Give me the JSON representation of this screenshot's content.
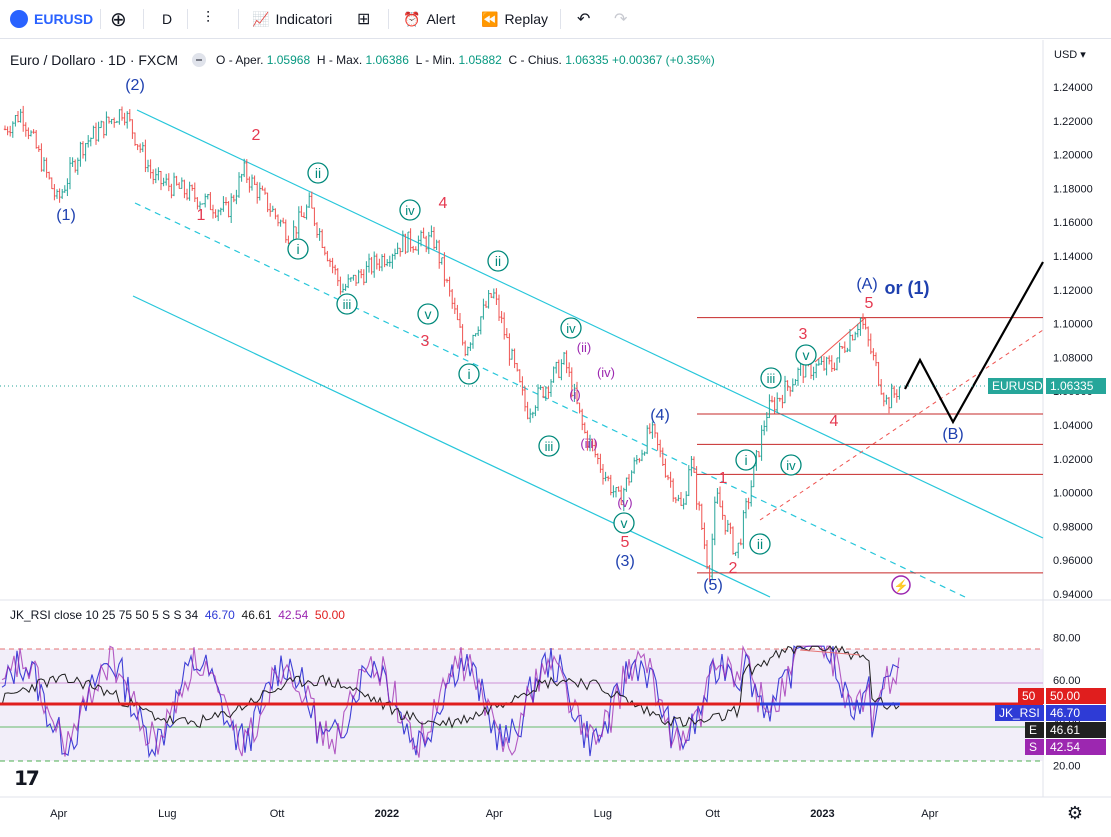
{
  "toolbar": {
    "symbol": "EURUSD",
    "interval": "D",
    "indicators_label": "Indicatori",
    "alert_label": "Alert",
    "replay_label": "Replay"
  },
  "legend": {
    "title": "Euro / Dollaro · 1D · FXCM",
    "open_label": "O - Aper.",
    "open": "1.05968",
    "high_label": "H - Max.",
    "high": "1.06386",
    "low_label": "L - Min.",
    "low": "1.05882",
    "close_label": "C - Chius.",
    "close": "1.06335",
    "change": "+0.00367 (+0.35%)"
  },
  "currency": "USD",
  "price_tag": {
    "label": "EURUSD",
    "value": "1.06335",
    "color": "#26a69a"
  },
  "rsi_legend": {
    "name": "JK_RSI",
    "params": "close 10 25 75 50 5 S S 34",
    "v1": "46.70",
    "v2": "46.61",
    "v3": "42.54",
    "v4": "50.00"
  },
  "rsi_tags": [
    {
      "label": "50",
      "value": "50.00",
      "color": "#e01e1e"
    },
    {
      "label": "JK_RSI",
      "value": "46.70",
      "color": "#2e3bd6"
    },
    {
      "label": "E",
      "value": "46.61",
      "color": "#202020"
    },
    {
      "label": "S",
      "value": "42.54",
      "color": "#9c27b0"
    }
  ],
  "chart_data": {
    "type": "line",
    "title": "Euro / Dollaro · 1D · FXCM",
    "price_axis": {
      "ticks": [
        "1.24000",
        "1.22000",
        "1.20000",
        "1.18000",
        "1.16000",
        "1.14000",
        "1.12000",
        "1.10000",
        "1.08000",
        "1.06000",
        "1.04000",
        "1.02000",
        "1.00000",
        "0.98000",
        "0.96000",
        "0.94000"
      ],
      "ylim": [
        0.94,
        1.24
      ]
    },
    "time_axis": {
      "ticks": [
        "Apr",
        "Lug",
        "Ott",
        "2022",
        "Apr",
        "Lug",
        "Ott",
        "2023",
        "Apr"
      ],
      "bold_ticks": [
        "2022",
        "2023"
      ]
    },
    "rsi_axis": {
      "ticks": [
        "80.00",
        "60.00",
        "40.00",
        "20.00"
      ],
      "ylim": [
        15,
        85
      ]
    },
    "series": [
      {
        "name": "EURUSD",
        "x": [
          "2021-02-15",
          "2021-03-01",
          "2021-03-31",
          "2021-04-20",
          "2021-05-25",
          "2021-06-20",
          "2021-07-10",
          "2021-08-20",
          "2021-09-03",
          "2021-10-12",
          "2021-10-28",
          "2021-11-24",
          "2022-01-14",
          "2022-02-10",
          "2022-03-07",
          "2022-03-31",
          "2022-04-28",
          "2022-05-30",
          "2022-06-15",
          "2022-07-14",
          "2022-08-10",
          "2022-09-06",
          "2022-09-12",
          "2022-09-28",
          "2022-10-04",
          "2022-10-21",
          "2022-11-15",
          "2022-12-14",
          "2023-01-09",
          "2023-02-02",
          "2023-02-24",
          "2023-03-07"
        ],
        "values": [
          1.215,
          1.225,
          1.172,
          1.205,
          1.227,
          1.185,
          1.18,
          1.166,
          1.19,
          1.152,
          1.17,
          1.12,
          1.148,
          1.149,
          1.085,
          1.118,
          1.048,
          1.078,
          1.036,
          0.995,
          1.037,
          0.988,
          1.022,
          0.953,
          0.998,
          0.963,
          1.047,
          1.073,
          1.075,
          1.103,
          1.053,
          1.063
        ]
      }
    ],
    "wave_labels": [
      "(1)",
      "(2)",
      "1",
      "2",
      "i",
      "ii",
      "iii",
      "iv",
      "v",
      "3",
      "4",
      "i",
      "ii",
      "iii",
      "iv",
      "v",
      "(i)",
      "(ii)",
      "(iii)",
      "(iv)",
      "(v)",
      "5",
      "(3)",
      "(4)",
      "(5)",
      "1",
      "2",
      "i",
      "ii",
      "iii",
      "iv",
      "v",
      "3",
      "4",
      "5",
      "(A)",
      "or (1)",
      "(B)"
    ],
    "horizontal_levels": [
      1.1035,
      1.0465,
      1.0285,
      1.0108,
      0.9525
    ],
    "rsi_series": [
      {
        "name": "JK_RSI",
        "value": 46.7,
        "color": "#3f3fd6"
      },
      {
        "name": "E",
        "value": 46.61,
        "color": "#202020"
      },
      {
        "name": "S",
        "value": 42.54,
        "color": "#9c27b0"
      },
      {
        "name": "50",
        "value": 50.0,
        "color": "#e01e1e"
      }
    ],
    "rsi_levels": [
      75,
      60,
      25
    ]
  }
}
